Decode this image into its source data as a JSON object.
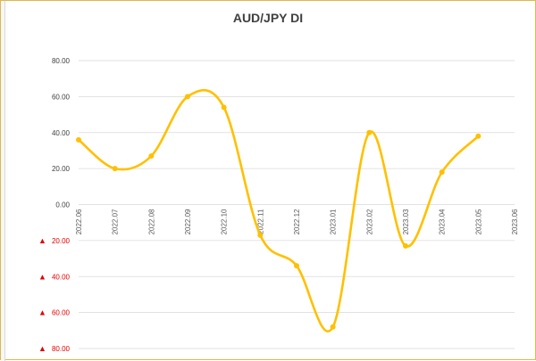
{
  "chart_data": {
    "type": "line",
    "title": "AUD/JPY  DI",
    "x": [
      "2022.06",
      "2022.07",
      "2022.08",
      "2022.09",
      "2022.10",
      "2022.11",
      "2022.12",
      "2023.01",
      "2023.02",
      "2023.03",
      "2023.04",
      "2023.05",
      "2023.06"
    ],
    "series": [
      {
        "values": [
          36,
          20,
          27,
          60,
          54,
          -17,
          -34,
          -68,
          40,
          -23,
          18,
          38,
          null
        ]
      }
    ],
    "y_tick_values": [
      80,
      60,
      40,
      20,
      0,
      -20,
      -40,
      -60,
      -80
    ],
    "y_tick_labels": [
      "80.00",
      "60.00",
      "40.00",
      "20.00",
      "0.00",
      "20.00",
      "40.00",
      "60.00",
      "80.00"
    ],
    "negative_marker": "▲",
    "ylim": [
      -80,
      80
    ],
    "xlabel": "",
    "ylabel": "",
    "grid": "horizontal",
    "colors": {
      "line": "#ffc000",
      "grid": "#d9d9d9",
      "negative_label": "#e00000",
      "frame": "#e0b84a"
    }
  }
}
